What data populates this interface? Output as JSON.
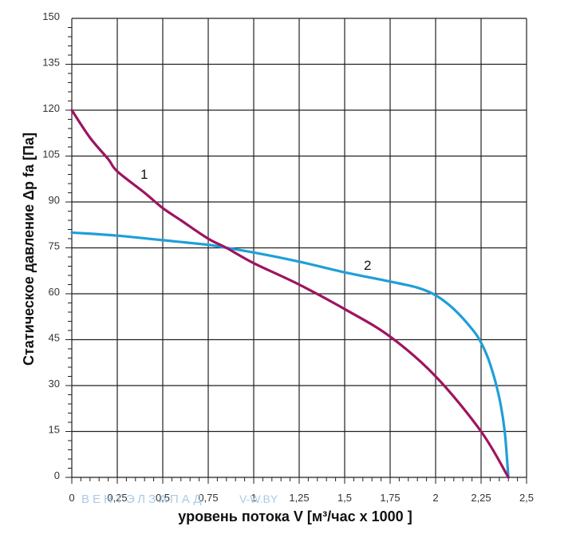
{
  "chart_data": {
    "type": "line",
    "xlabel": "уровень потока  V [м³/час х 1000 ]",
    "ylabel": "Статическое давление  Δp fa [Па]",
    "xlim": [
      0,
      2.5
    ],
    "ylim": [
      0,
      150
    ],
    "x_ticks": [
      "0",
      "0,25",
      "0,5",
      "0,75",
      "1",
      "1,25",
      "1,5",
      "1,75",
      "2",
      "2,25",
      "2,5"
    ],
    "y_ticks": [
      "0",
      "15",
      "30",
      "45",
      "60",
      "75",
      "90",
      "105",
      "120",
      "135",
      "150"
    ],
    "grid": true,
    "colors": {
      "series_1": "#9e1460",
      "series_2": "#1f9fd8",
      "grid": "#222222"
    },
    "series": [
      {
        "name": "1",
        "x": [
          0,
          0.1,
          0.2,
          0.25,
          0.4,
          0.5,
          0.6,
          0.75,
          0.85,
          1.0,
          1.25,
          1.5,
          1.75,
          2.0,
          2.25,
          2.4
        ],
        "y": [
          120,
          111,
          104,
          100,
          93,
          88,
          84,
          78,
          75,
          70,
          63,
          55,
          46,
          33,
          15,
          0
        ]
      },
      {
        "name": "2",
        "x": [
          0,
          0.25,
          0.5,
          0.75,
          0.85,
          1.0,
          1.25,
          1.5,
          1.75,
          1.9,
          2.0,
          2.1,
          2.2,
          2.25,
          2.3,
          2.35,
          2.38,
          2.4
        ],
        "y": [
          80,
          79,
          77.5,
          76,
          75,
          73.5,
          70.5,
          67,
          64,
          62,
          59.5,
          55,
          48.5,
          44,
          37,
          26,
          15,
          0
        ]
      }
    ]
  },
  "watermark": {
    "brand": "ВЕНТЭЛЗАПАД",
    "site": "V-W.BY"
  }
}
